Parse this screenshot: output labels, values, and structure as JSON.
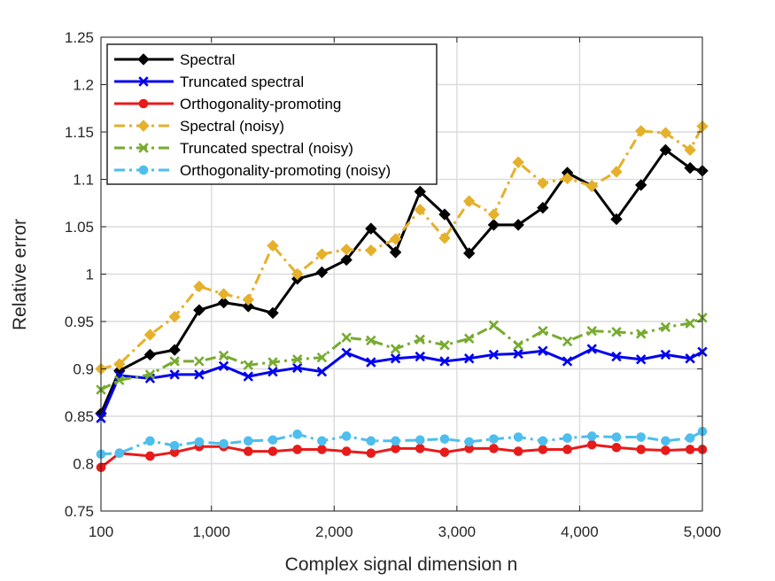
{
  "chart_data": {
    "type": "line",
    "title": "",
    "xlabel": "Complex signal dimension n",
    "ylabel": "Relative error",
    "xlim": [
      100,
      5000
    ],
    "ylim": [
      0.75,
      1.25
    ],
    "xticks": [
      100,
      1000,
      2000,
      3000,
      4000,
      5000
    ],
    "xtick_labels": [
      "100",
      "1,000",
      "2,000",
      "3,000",
      "4,000",
      "5,000"
    ],
    "yticks": [
      0.75,
      0.8,
      0.85,
      0.9,
      0.95,
      1,
      1.05,
      1.1,
      1.15,
      1.2,
      1.25
    ],
    "ytick_labels": [
      "0.75",
      "0.8",
      "0.85",
      "0.9",
      "0.95",
      "1",
      "1.05",
      "1.1",
      "1.15",
      "1.2",
      "1.25"
    ],
    "grid": true,
    "legend_position": "top-left",
    "x": [
      100,
      250,
      500,
      700,
      900,
      1100,
      1300,
      1500,
      1700,
      1900,
      2100,
      2300,
      2500,
      2700,
      2900,
      3100,
      3300,
      3500,
      3700,
      3900,
      4100,
      4300,
      4500,
      4700,
      4900,
      5000
    ],
    "series": [
      {
        "name": "Spectral",
        "color": "#000000",
        "line_style": "solid",
        "marker": "diamond",
        "values": [
          0.853,
          0.898,
          0.915,
          0.92,
          0.962,
          0.97,
          0.966,
          0.959,
          0.995,
          1.002,
          1.015,
          1.048,
          1.023,
          1.087,
          1.063,
          1.022,
          1.052,
          1.052,
          1.07,
          1.107,
          1.093,
          1.058,
          1.094,
          1.131,
          1.112,
          1.109
        ]
      },
      {
        "name": "Truncated spectral",
        "color": "#0000ee",
        "line_style": "solid",
        "marker": "x",
        "values": [
          0.848,
          0.893,
          0.89,
          0.894,
          0.894,
          0.903,
          0.892,
          0.897,
          0.901,
          0.897,
          0.917,
          0.907,
          0.911,
          0.913,
          0.908,
          0.911,
          0.915,
          0.916,
          0.919,
          0.908,
          0.921,
          0.913,
          0.91,
          0.915,
          0.911,
          0.918
        ]
      },
      {
        "name": "Orthogonality-promoting",
        "color": "#e81b1b",
        "line_style": "solid",
        "marker": "circle",
        "values": [
          0.796,
          0.811,
          0.808,
          0.812,
          0.818,
          0.818,
          0.813,
          0.813,
          0.815,
          0.815,
          0.813,
          0.811,
          0.816,
          0.816,
          0.812,
          0.816,
          0.816,
          0.813,
          0.815,
          0.815,
          0.82,
          0.817,
          0.815,
          0.814,
          0.815,
          0.815
        ]
      },
      {
        "name": "Spectral (noisy)",
        "color": "#e5b12b",
        "line_style": "dashdot",
        "marker": "diamond",
        "values": [
          0.9,
          0.905,
          0.936,
          0.955,
          0.987,
          0.979,
          0.973,
          1.03,
          1.0,
          1.021,
          1.026,
          1.025,
          1.037,
          1.068,
          1.038,
          1.077,
          1.063,
          1.118,
          1.096,
          1.101,
          1.093,
          1.108,
          1.151,
          1.149,
          1.131,
          1.156
        ]
      },
      {
        "name": "Truncated spectral (noisy)",
        "color": "#76ab2f",
        "line_style": "dashdot",
        "marker": "x",
        "values": [
          0.878,
          0.888,
          0.894,
          0.908,
          0.908,
          0.914,
          0.904,
          0.907,
          0.91,
          0.912,
          0.933,
          0.93,
          0.921,
          0.931,
          0.925,
          0.932,
          0.946,
          0.925,
          0.94,
          0.929,
          0.94,
          0.939,
          0.937,
          0.944,
          0.948,
          0.954
        ]
      },
      {
        "name": "Orthogonality-promoting (noisy)",
        "color": "#4dbeee",
        "line_style": "dashdot",
        "marker": "circle",
        "values": [
          0.81,
          0.811,
          0.824,
          0.819,
          0.823,
          0.821,
          0.824,
          0.825,
          0.831,
          0.824,
          0.829,
          0.824,
          0.824,
          0.825,
          0.826,
          0.823,
          0.826,
          0.828,
          0.824,
          0.827,
          0.829,
          0.828,
          0.828,
          0.824,
          0.827,
          0.834
        ]
      }
    ]
  }
}
